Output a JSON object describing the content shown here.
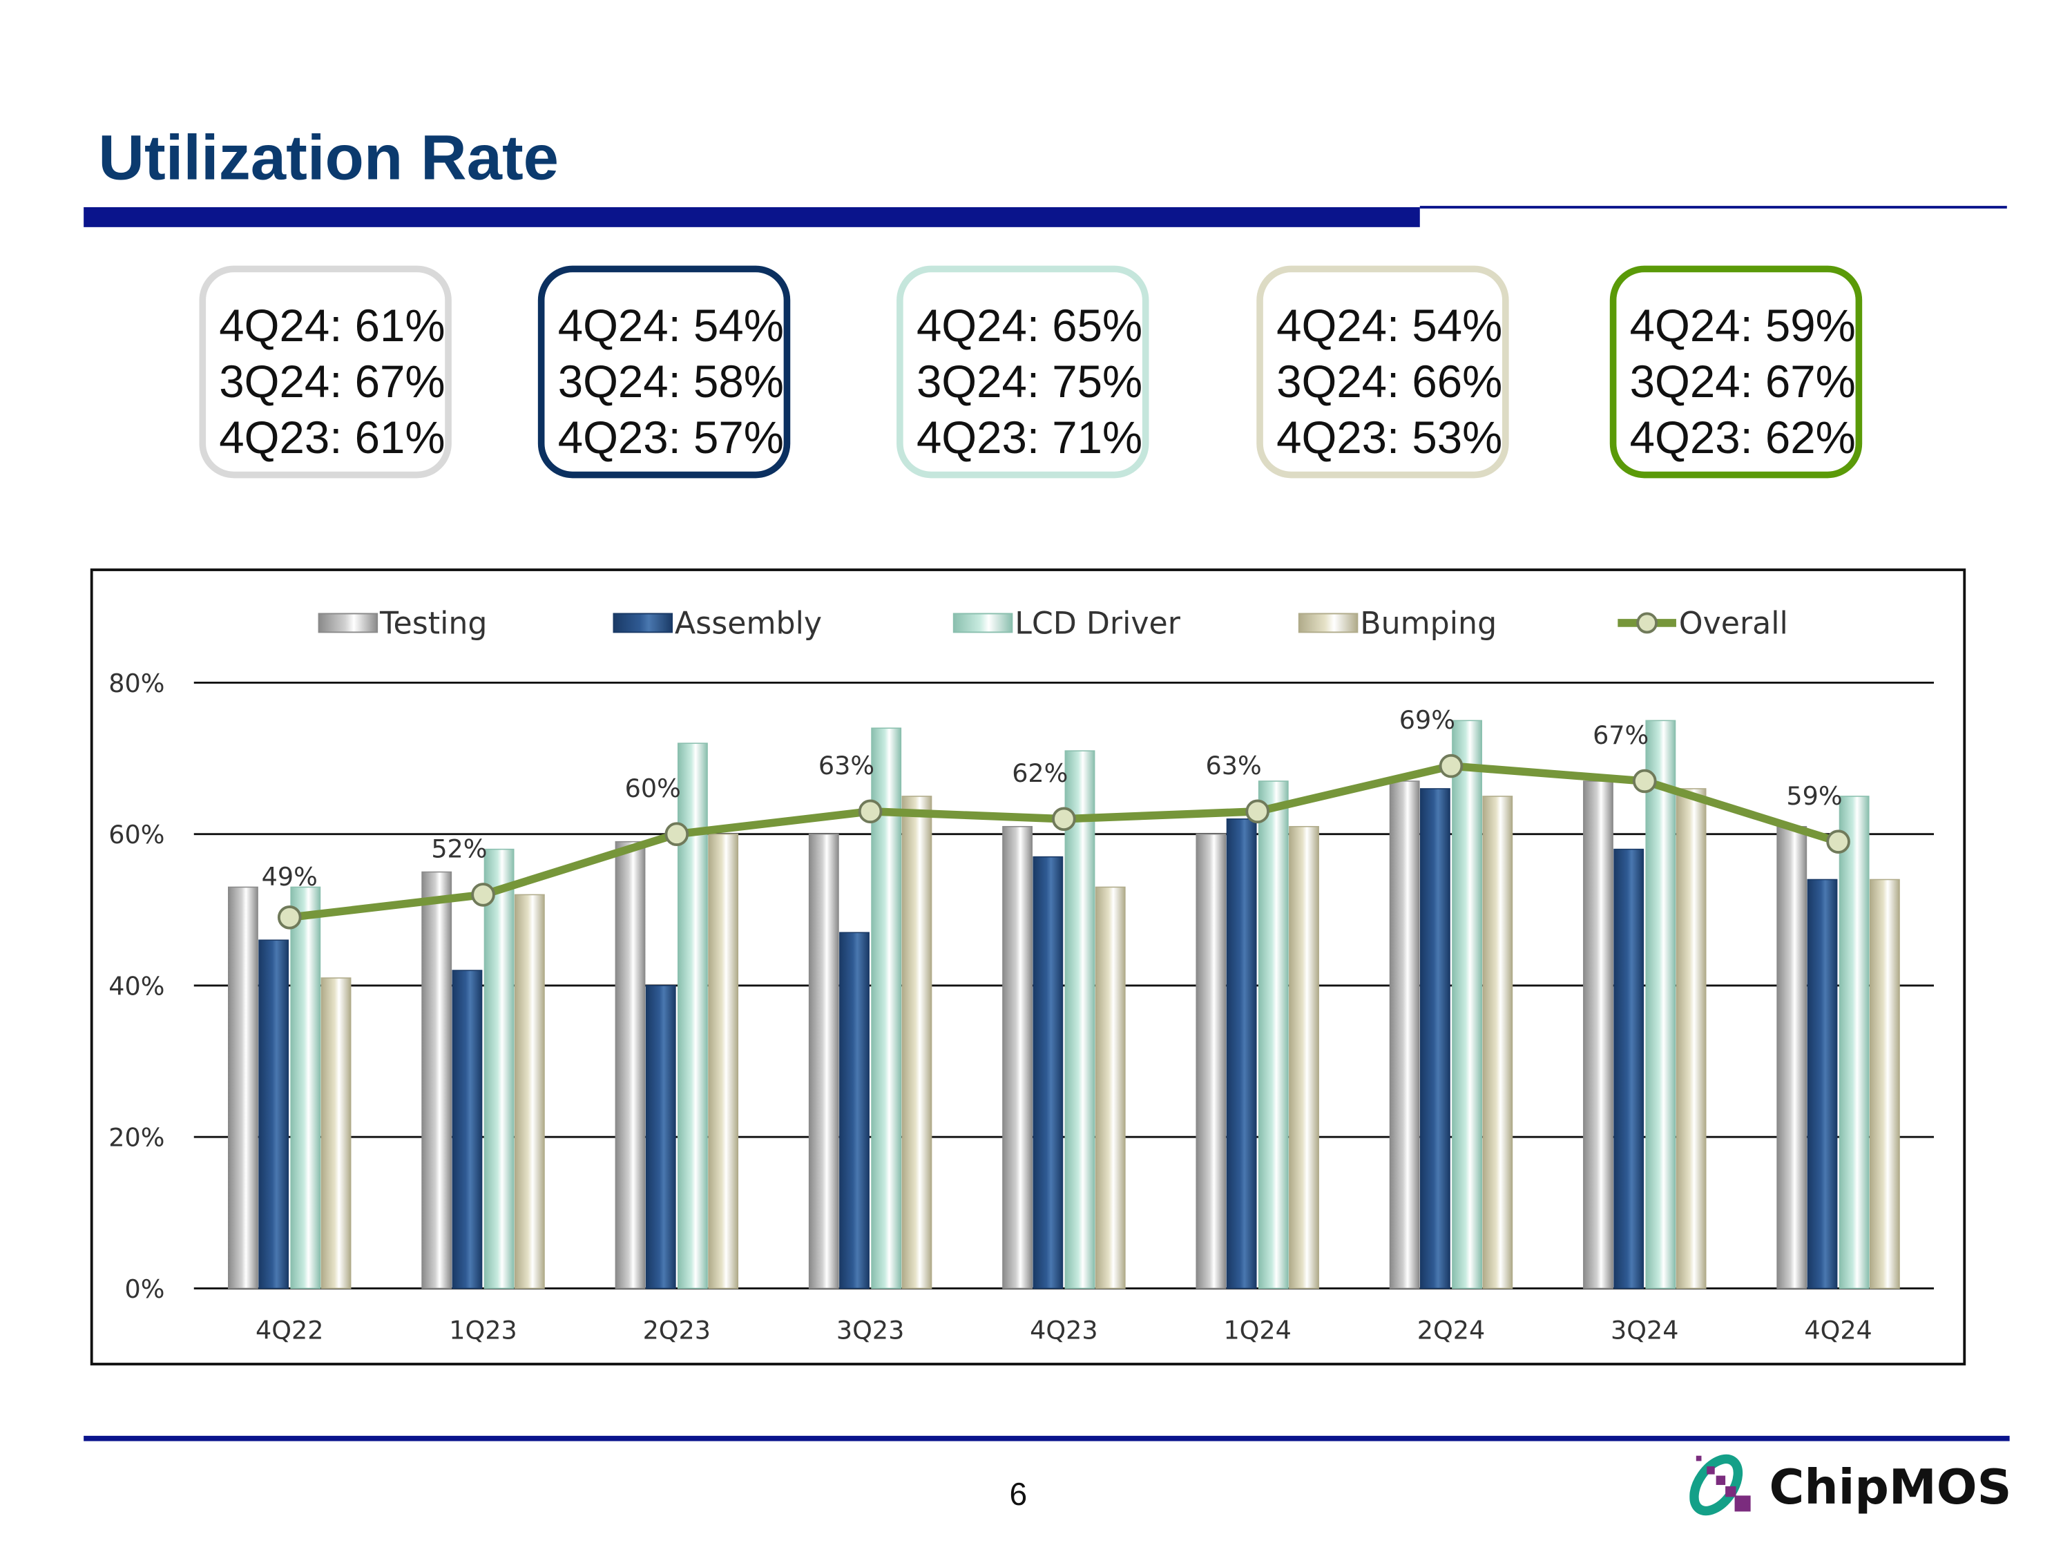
{
  "page": {
    "title": "Utilization Rate",
    "page_number": "6",
    "logo_text": "ChipMOS"
  },
  "colors": {
    "title": "#0b3a6e",
    "rule": "#0a148c",
    "testing": "#d0d0d0",
    "assembly": "#2f5a93",
    "lcd": "#c8ebe0",
    "bumping": "#e6e2c8",
    "overall": "#76963a"
  },
  "summary_boxes": [
    {
      "segment_color": "#d9d9d9",
      "lines": [
        "4Q24: 61%",
        "3Q24: 67%",
        "4Q23: 61%"
      ]
    },
    {
      "segment_color": "#0b3060",
      "lines": [
        "4Q24: 54%",
        "3Q24: 58%",
        "4Q23: 57%"
      ]
    },
    {
      "segment_color": "#c5e6dc",
      "lines": [
        "4Q24: 65%",
        "3Q24: 75%",
        "4Q23: 71%"
      ]
    },
    {
      "segment_color": "#dddbc4",
      "lines": [
        "4Q24: 54%",
        "3Q24: 66%",
        "4Q23: 53%"
      ]
    },
    {
      "segment_color": "#5a9a08",
      "lines": [
        "4Q24: 59%",
        "3Q24: 67%",
        "4Q23: 62%"
      ]
    }
  ],
  "chart_data": {
    "type": "bar",
    "categories": [
      "4Q22",
      "1Q23",
      "2Q23",
      "3Q23",
      "4Q23",
      "1Q24",
      "2Q24",
      "3Q24",
      "4Q24"
    ],
    "series": [
      {
        "name": "Testing",
        "type": "bar",
        "values": [
          53,
          55,
          59,
          60,
          61,
          60,
          67,
          67,
          61
        ]
      },
      {
        "name": "Assembly",
        "type": "bar",
        "values": [
          46,
          42,
          40,
          47,
          57,
          62,
          66,
          58,
          54
        ]
      },
      {
        "name": "LCD Driver",
        "type": "bar",
        "values": [
          53,
          58,
          72,
          74,
          71,
          67,
          75,
          75,
          65
        ]
      },
      {
        "name": "Bumping",
        "type": "bar",
        "values": [
          41,
          52,
          60,
          65,
          53,
          61,
          65,
          66,
          54
        ]
      },
      {
        "name": "Overall",
        "type": "line",
        "values": [
          49,
          52,
          60,
          63,
          62,
          63,
          69,
          67,
          59
        ],
        "labels": [
          "49%",
          "52%",
          "60%",
          "63%",
          "62%",
          "63%",
          "69%",
          "67%",
          "59%"
        ]
      }
    ],
    "yticks": [
      "0%",
      "20%",
      "40%",
      "60%",
      "80%"
    ],
    "ylim": [
      0,
      80
    ],
    "grid": true,
    "legend": "top"
  }
}
